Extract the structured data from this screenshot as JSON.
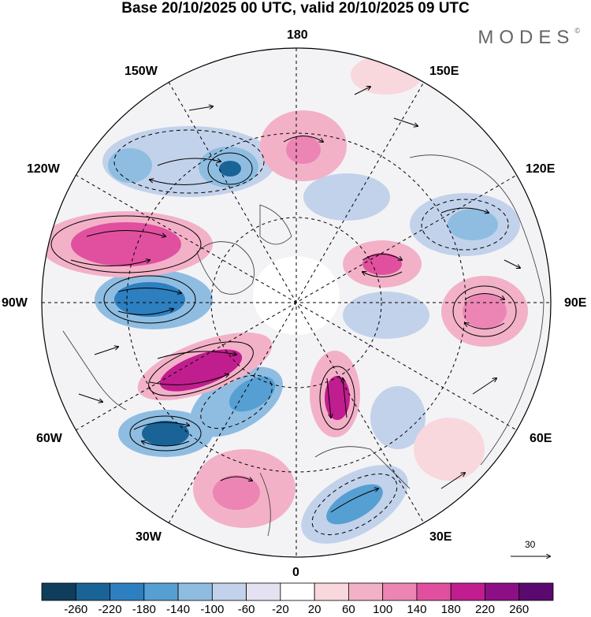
{
  "title": "Base 20/10/2025 00 UTC, valid 20/10/2025 09 UTC",
  "brand": "MODES",
  "brand_mark": "©",
  "longitude_labels": {
    "lon_180": "180",
    "lon_150e": "150E",
    "lon_120e": "120E",
    "lon_90e": "90E",
    "lon_60e": "60E",
    "lon_30e": "30E",
    "lon_0": "0",
    "lon_30w": "30W",
    "lon_60w": "60W",
    "lon_90w": "90W",
    "lon_120w": "120W",
    "lon_150w": "150W"
  },
  "reference_vector": {
    "value": "30"
  },
  "colorbar": {
    "ticks": [
      "-260",
      "-220",
      "-180",
      "-140",
      "-100",
      "-60",
      "-20",
      "20",
      "60",
      "100",
      "140",
      "180",
      "220",
      "260"
    ],
    "colors": [
      "#0f3d5c",
      "#1a6396",
      "#2d7fbf",
      "#559fd3",
      "#8fbde2",
      "#c2d2ea",
      "#e4e2f1",
      "#ffffff",
      "#f8d7dd",
      "#f3b1c8",
      "#ec85b4",
      "#e0509f",
      "#c01e8e",
      "#8c0f86",
      "#5a0a6e"
    ]
  },
  "anomaly_field": {
    "negative_color": "#2d7fbf",
    "positive_color": "#d7469c"
  }
}
